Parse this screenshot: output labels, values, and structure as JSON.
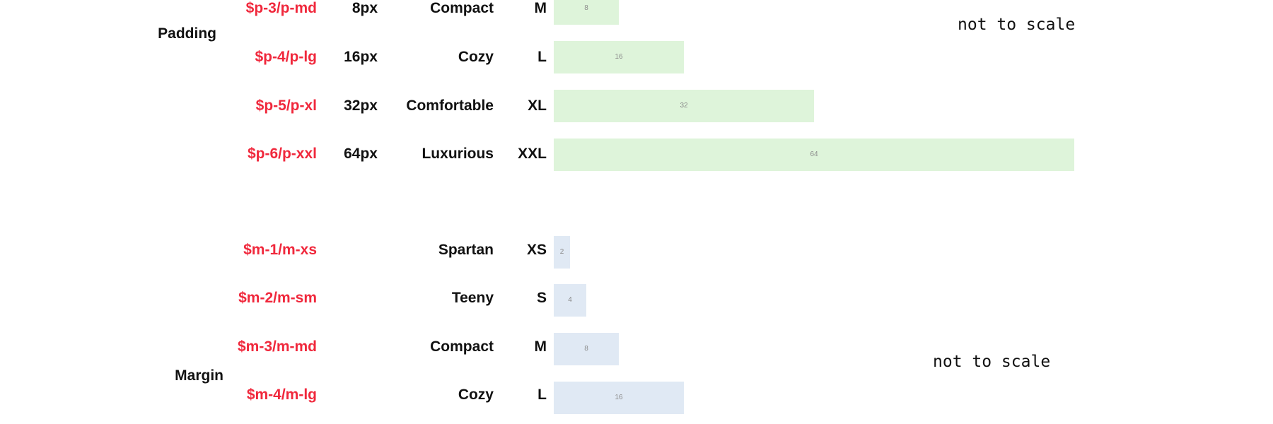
{
  "colors": {
    "token": "#f0283c",
    "padding_bar": "#def4da",
    "margin_bar": "#e0e9f4",
    "text": "#111111"
  },
  "padding": {
    "label": "Padding",
    "note": "not to scale",
    "rows": [
      {
        "token": "$p-3/p-md",
        "px": "8px",
        "name": "Compact",
        "size": "M",
        "bar_label": "8",
        "value": 8
      },
      {
        "token": "$p-4/p-lg",
        "px": "16px",
        "name": "Cozy",
        "size": "L",
        "bar_label": "16",
        "value": 16
      },
      {
        "token": "$p-5/p-xl",
        "px": "32px",
        "name": "Comfortable",
        "size": "XL",
        "bar_label": "32",
        "value": 32
      },
      {
        "token": "$p-6/p-xxl",
        "px": "64px",
        "name": "Luxurious",
        "size": "XXL",
        "bar_label": "64",
        "value": 64
      }
    ]
  },
  "margin": {
    "label": "Margin",
    "note": "not to scale",
    "rows": [
      {
        "token": "$m-1/m-xs",
        "px": "",
        "name": "Spartan",
        "size": "XS",
        "bar_label": "2",
        "value": 2
      },
      {
        "token": "$m-2/m-sm",
        "px": "",
        "name": "Teeny",
        "size": "S",
        "bar_label": "4",
        "value": 4
      },
      {
        "token": "$m-3/m-md",
        "px": "",
        "name": "Compact",
        "size": "M",
        "bar_label": "8",
        "value": 8
      },
      {
        "token": "$m-4/m-lg",
        "px": "",
        "name": "Cozy",
        "size": "L",
        "bar_label": "16",
        "value": 16
      }
    ]
  }
}
